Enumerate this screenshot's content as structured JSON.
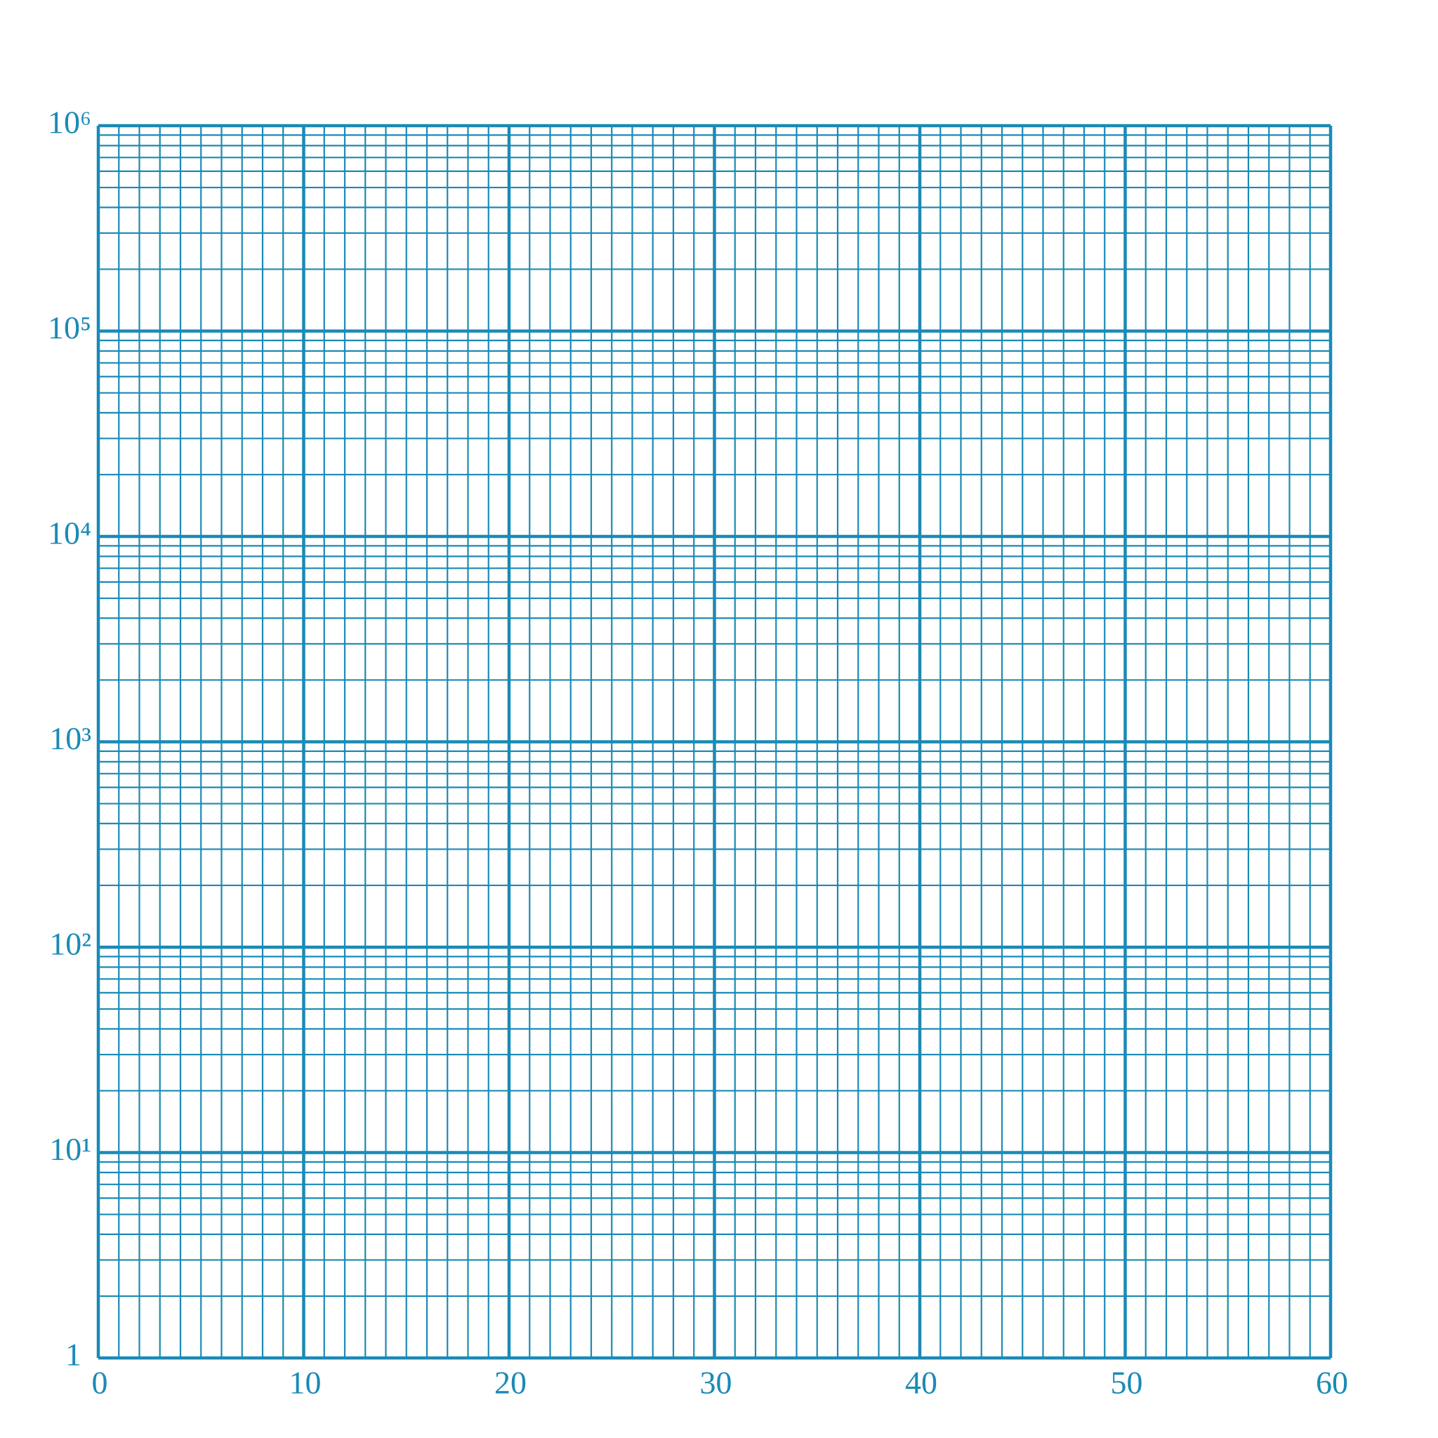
{
  "chart_data": {
    "type": "grid",
    "color": "#1a8ab6",
    "grid": true,
    "minor_grid": true,
    "ylog": true,
    "xlim": [
      0,
      60
    ],
    "xticks": [
      0,
      10,
      20,
      30,
      40,
      50,
      60
    ],
    "ylim": [
      1,
      1000000
    ],
    "yticks": [
      1,
      {
        "value": 10,
        "label": "10¹"
      },
      {
        "value": 100,
        "label": "10²"
      },
      {
        "value": 1000,
        "label": "10³"
      },
      {
        "value": 10000,
        "label": "10⁴"
      },
      {
        "value": 100000,
        "label": "10⁵"
      },
      {
        "value": 1000000,
        "label": "10⁶"
      }
    ]
  }
}
